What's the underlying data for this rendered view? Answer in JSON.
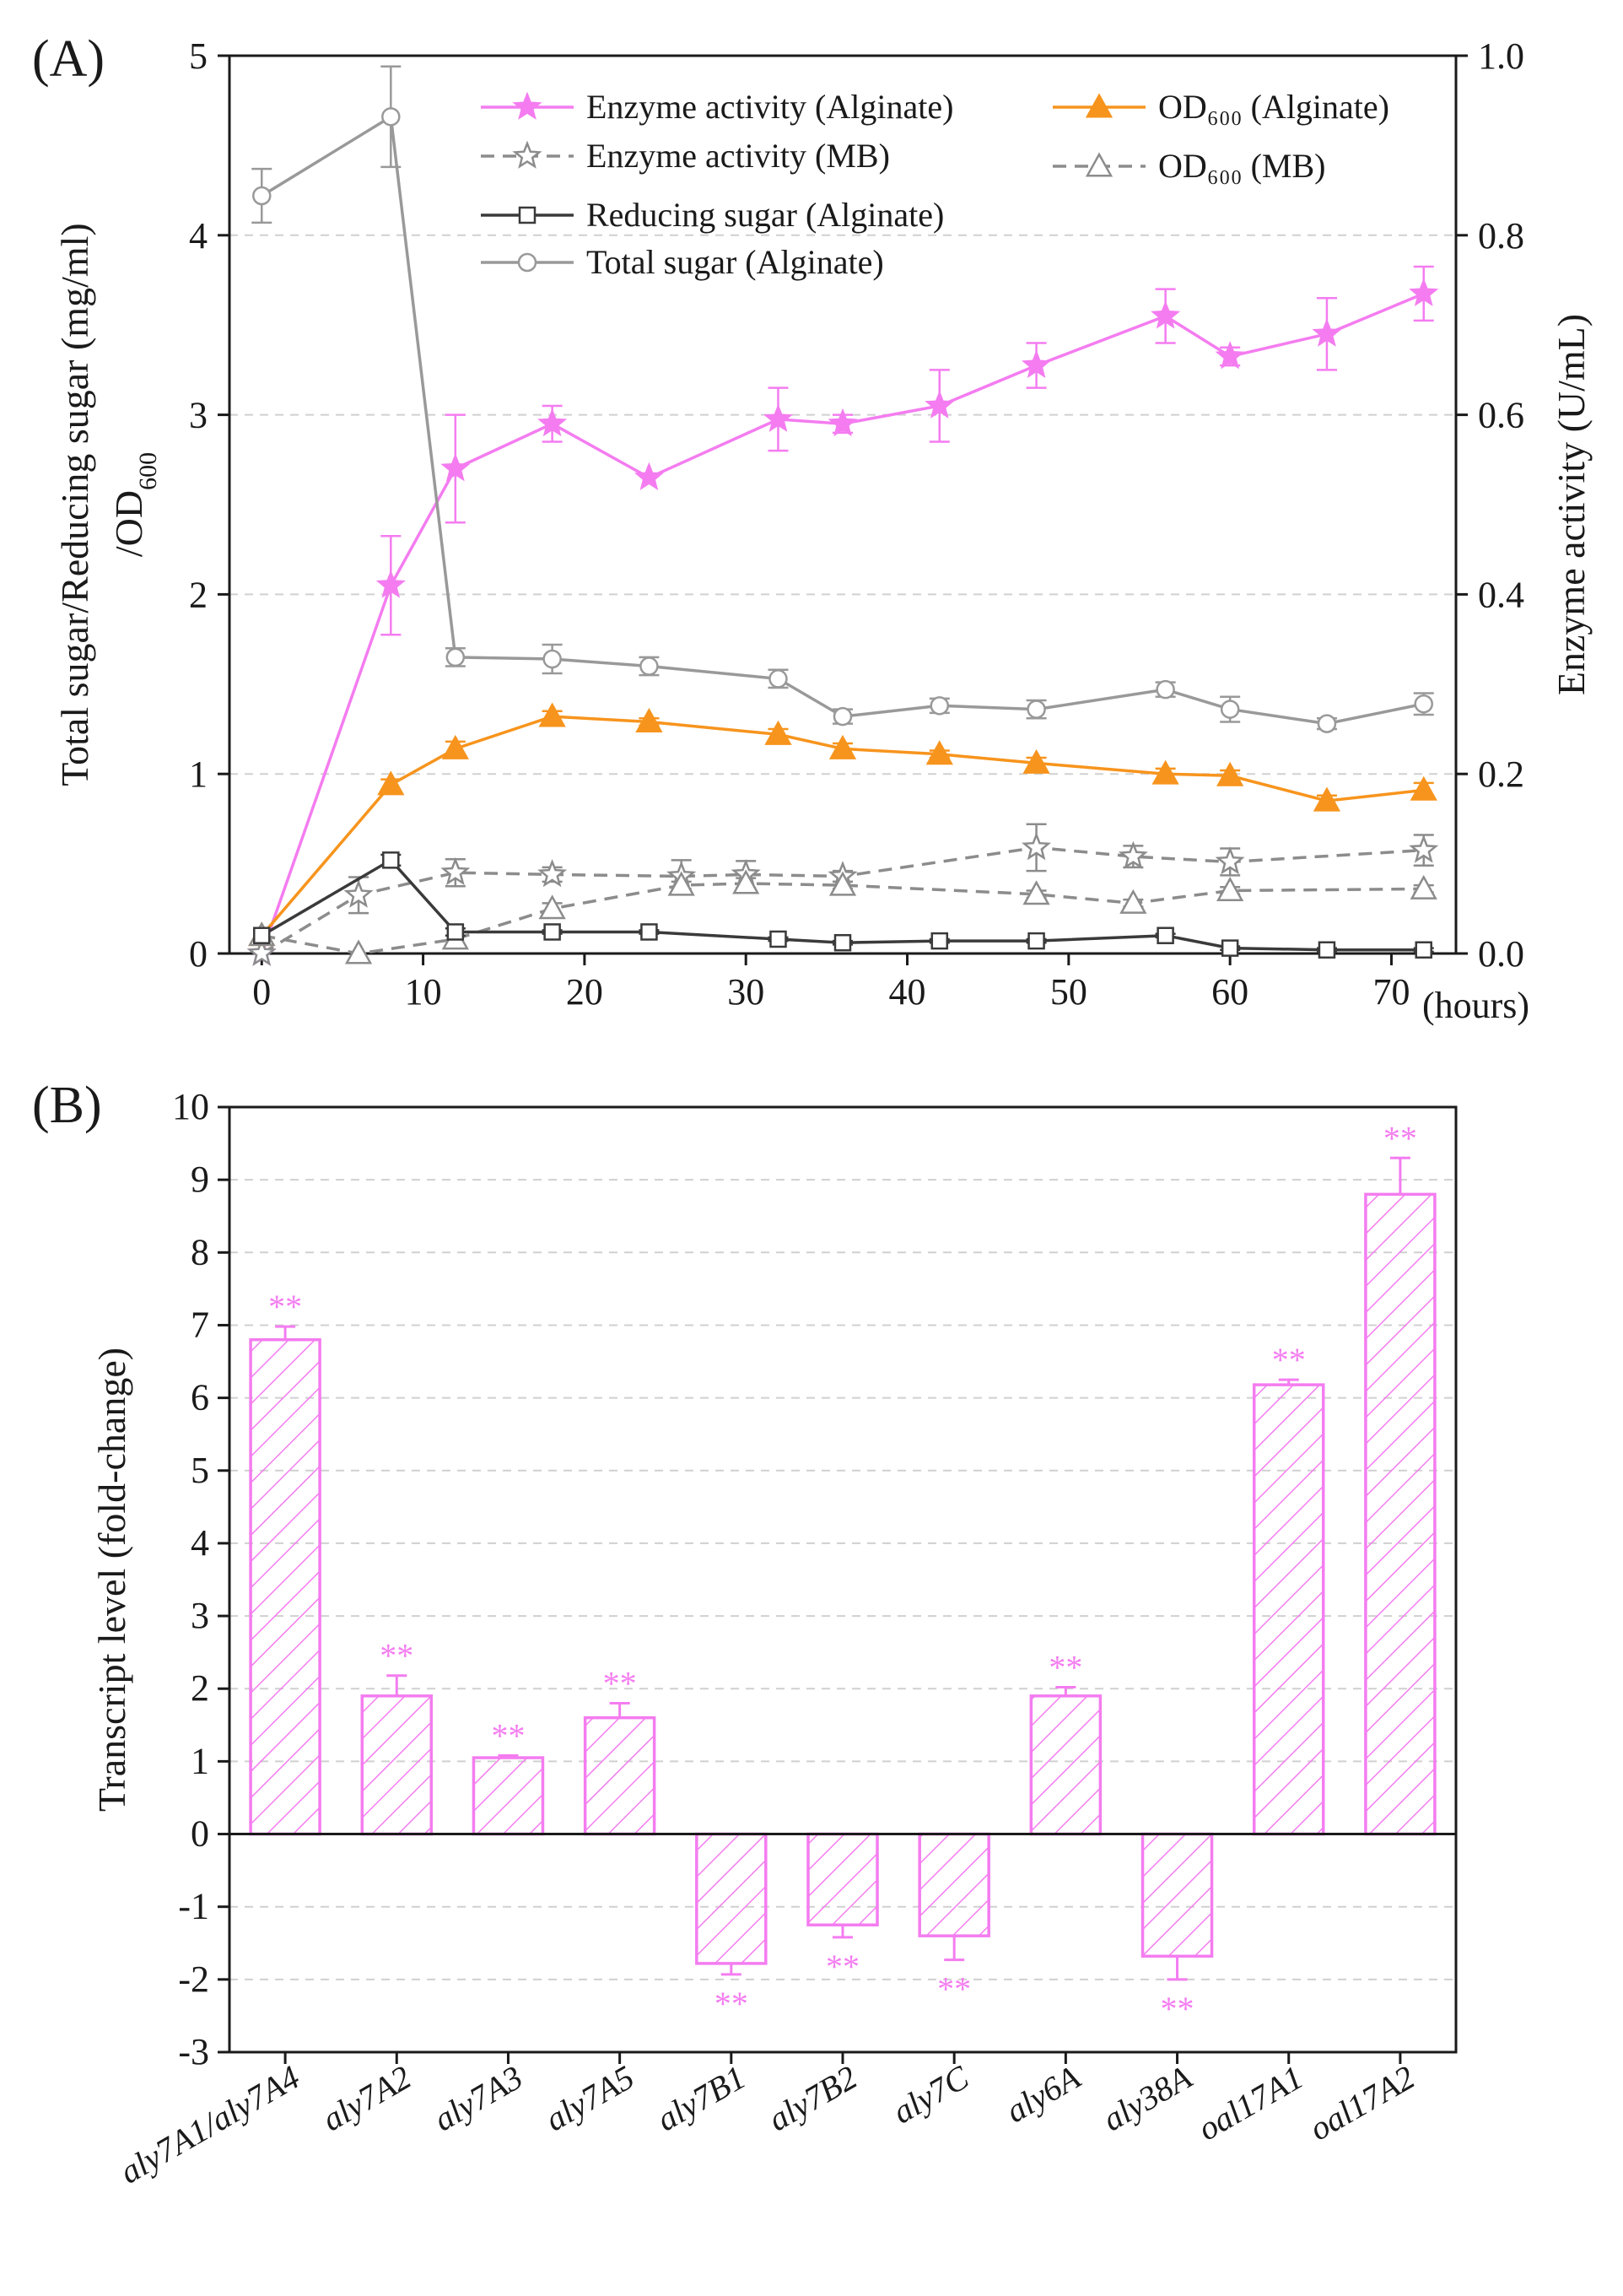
{
  "panels": {
    "a_label": "(A)",
    "b_label": "(B)"
  },
  "chart_data": [
    {
      "type": "line",
      "x_unit_label": "(hours)",
      "ylabel_line1": "Total sugar/Reducing sugar (mg/ml)",
      "ylabel_line2": "/OD",
      "ylabel_line2_sub": "600",
      "y2label": "Enzyme activity (U/mL)",
      "xlim": [
        -2,
        74
      ],
      "ylim": [
        0,
        5
      ],
      "y2lim": [
        0,
        1.0
      ],
      "x_ticks": [
        0,
        10,
        20,
        30,
        40,
        50,
        60,
        70
      ],
      "y_ticks": [
        0,
        1,
        2,
        3,
        4,
        5
      ],
      "y2_ticks": [
        "0.0",
        "0.2",
        "0.4",
        "0.6",
        "0.8",
        "1.0"
      ],
      "grid": "horizontal-dashed",
      "legend_position": "top",
      "series": [
        {
          "name": "Enzyme activity (Alginate)",
          "axis": "right",
          "color": "#f47cf0",
          "marker": "star-filled",
          "dash": "solid",
          "x": [
            0,
            8,
            12,
            18,
            24,
            32,
            36,
            42,
            48,
            56,
            60,
            66,
            72
          ],
          "y": [
            0.0,
            0.41,
            0.54,
            0.59,
            0.53,
            0.595,
            0.59,
            0.61,
            0.655,
            0.71,
            0.665,
            0.69,
            0.735
          ],
          "err": [
            0,
            0.055,
            0.06,
            0.02,
            0,
            0.035,
            0.01,
            0.04,
            0.025,
            0.03,
            0.01,
            0.04,
            0.03
          ]
        },
        {
          "name": "Enzyme activity (MB)",
          "axis": "right",
          "color": "#8c8c8c",
          "marker": "star-open",
          "dash": "dashed",
          "x": [
            0,
            6,
            12,
            18,
            26,
            30,
            36,
            48,
            54,
            60,
            72
          ],
          "y": [
            0.0,
            0.065,
            0.09,
            0.088,
            0.086,
            0.088,
            0.086,
            0.118,
            0.108,
            0.102,
            0.115
          ],
          "err": [
            0,
            0.02,
            0.015,
            0.008,
            0.018,
            0.015,
            0.006,
            0.026,
            0.012,
            0.015,
            0.017
          ]
        },
        {
          "name": "OD₆₀₀ (Alginate)",
          "axis": "left",
          "color": "#f7941d",
          "marker": "triangle-filled",
          "dash": "solid",
          "x": [
            0,
            8,
            12,
            18,
            24,
            32,
            36,
            42,
            48,
            56,
            60,
            66,
            72
          ],
          "y": [
            0.1,
            0.94,
            1.14,
            1.32,
            1.29,
            1.22,
            1.14,
            1.11,
            1.06,
            1.0,
            0.99,
            0.85,
            0.91
          ],
          "err": [
            0,
            0.03,
            0.04,
            0.03,
            0.02,
            0.03,
            0.03,
            0.02,
            0.03,
            0.03,
            0.03,
            0.03,
            0.04
          ]
        },
        {
          "name": "OD₆₀₀ (MB)",
          "axis": "left",
          "color": "#8c8c8c",
          "marker": "triangle-open",
          "dash": "dashed",
          "x": [
            0,
            6,
            12,
            18,
            26,
            30,
            36,
            48,
            54,
            60,
            72
          ],
          "y": [
            0.1,
            0.0,
            0.08,
            0.25,
            0.38,
            0.39,
            0.38,
            0.33,
            0.28,
            0.35,
            0.36
          ],
          "err": [
            0,
            0,
            0,
            0.03,
            0.02,
            0.03,
            0.02,
            0.02,
            0.02,
            0.02,
            0.02
          ]
        },
        {
          "name": "Reducing sugar (Alginate)",
          "axis": "left",
          "color": "#3a3a3a",
          "marker": "square-open",
          "dash": "solid",
          "x": [
            0,
            8,
            12,
            18,
            24,
            32,
            36,
            42,
            48,
            56,
            60,
            66,
            72
          ],
          "y": [
            0.1,
            0.52,
            0.12,
            0.12,
            0.12,
            0.08,
            0.06,
            0.07,
            0.07,
            0.1,
            0.03,
            0.02,
            0.02
          ],
          "err": [
            0,
            0.03,
            0.02,
            0.01,
            0.01,
            0.01,
            0.01,
            0.01,
            0.01,
            0.01,
            0.01,
            0.01,
            0.01
          ]
        },
        {
          "name": "Total sugar (Alginate)",
          "axis": "left",
          "color": "#999999",
          "marker": "circle-open",
          "dash": "solid",
          "x": [
            0,
            8,
            12,
            18,
            24,
            32,
            36,
            42,
            48,
            56,
            60,
            66,
            72
          ],
          "y": [
            4.22,
            4.66,
            1.65,
            1.64,
            1.6,
            1.53,
            1.32,
            1.38,
            1.36,
            1.47,
            1.36,
            1.28,
            1.39
          ],
          "err": [
            0.15,
            0.28,
            0.05,
            0.08,
            0.05,
            0.05,
            0.04,
            0.04,
            0.05,
            0.04,
            0.07,
            0.03,
            0.06
          ]
        }
      ]
    },
    {
      "type": "bar",
      "ylabel": "Transcript level (fold-change)",
      "ylim": [
        -3,
        10
      ],
      "y_ticks": [
        -3,
        -2,
        -1,
        0,
        1,
        2,
        3,
        4,
        5,
        6,
        7,
        8,
        9,
        10
      ],
      "grid": "horizontal-dashed",
      "bar_color": "#f47cf0",
      "bar_pattern": "diagonal-hatch",
      "significance_marker": "**",
      "categories": [
        "aly7A1/aly7A4",
        "aly7A2",
        "aly7A3",
        "aly7A5",
        "aly7B1",
        "aly7B2",
        "aly7C",
        "aly6A",
        "aly38A",
        "oal17A1",
        "oal17A2"
      ],
      "values": [
        6.8,
        1.9,
        1.05,
        1.6,
        -1.78,
        -1.25,
        -1.4,
        1.9,
        -1.68,
        6.18,
        8.8
      ],
      "err": [
        0.18,
        0.28,
        0.03,
        0.2,
        0.15,
        0.17,
        0.33,
        0.12,
        0.32,
        0.07,
        0.5
      ]
    }
  ]
}
